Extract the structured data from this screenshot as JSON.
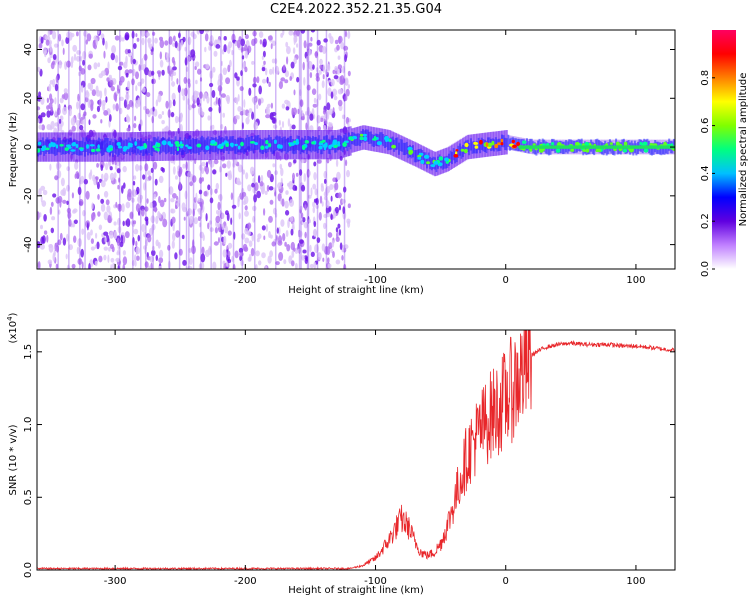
{
  "title": "C2E4.2022.352.21.35.G04",
  "chart_data": [
    {
      "type": "heatmap",
      "xlabel": "Height of straight line (km)",
      "ylabel": "Frequency (Hz)",
      "xlim": [
        -360,
        130
      ],
      "ylim": [
        -50,
        48
      ],
      "xticks": [
        -300,
        -200,
        -100,
        0,
        100
      ],
      "yticks": [
        -40,
        -20,
        0,
        20,
        40
      ],
      "colorbar": {
        "label": "Normalized spectral amplitude",
        "range": [
          0.0,
          1.0
        ],
        "ticks": [
          "0.0",
          "0.2",
          "0.4",
          "0.6",
          "0.8"
        ],
        "colors": [
          "#ffffff",
          "#c080ff",
          "#6000e0",
          "#0000ff",
          "#00c0ff",
          "#00ff80",
          "#80ff00",
          "#ffff00",
          "#ff8000",
          "#ff0000",
          "#ff0060"
        ]
      },
      "center_frequency_track": {
        "x": [
          -360,
          -300,
          -200,
          -130,
          -110,
          -90,
          -70,
          -55,
          -45,
          -30,
          -15,
          0,
          20,
          60,
          130
        ],
        "y": [
          0,
          0,
          1,
          1,
          4,
          2,
          -3,
          -7,
          -5,
          0,
          1,
          2,
          0,
          0,
          0
        ]
      },
      "noise_region_x": [
        -360,
        -120
      ]
    },
    {
      "type": "line",
      "xlabel": "Height of straight line (km)",
      "ylabel": "SNR (10 * v/v)",
      "scale_label": "(x10",
      "scale_exponent": "4",
      "xlim": [
        -360,
        130
      ],
      "ylim": [
        0,
        1.65
      ],
      "xticks": [
        -300,
        -200,
        -100,
        0,
        100
      ],
      "yticks": [
        "0.0",
        "0.5",
        "1.0",
        "1.5"
      ],
      "series": [
        {
          "color": "#e8262a",
          "x": [
            -360,
            -300,
            -250,
            -200,
            -150,
            -120,
            -110,
            -100,
            -95,
            -90,
            -85,
            -80,
            -75,
            -70,
            -65,
            -60,
            -55,
            -50,
            -45,
            -40,
            -35,
            -30,
            -25,
            -20,
            -15,
            -10,
            -5,
            0,
            5,
            10,
            15,
            20,
            30,
            40,
            50,
            60,
            70,
            80,
            90,
            100,
            110,
            120,
            130
          ],
          "y": [
            0.01,
            0.01,
            0.01,
            0.01,
            0.01,
            0.01,
            0.03,
            0.08,
            0.14,
            0.2,
            0.28,
            0.35,
            0.3,
            0.2,
            0.12,
            0.1,
            0.12,
            0.18,
            0.3,
            0.45,
            0.62,
            0.78,
            0.88,
            0.95,
            1.02,
            1.08,
            1.12,
            1.18,
            1.25,
            1.32,
            1.4,
            1.48,
            1.53,
            1.55,
            1.56,
            1.55,
            1.55,
            1.55,
            1.54,
            1.54,
            1.53,
            1.52,
            1.51
          ]
        }
      ]
    }
  ]
}
